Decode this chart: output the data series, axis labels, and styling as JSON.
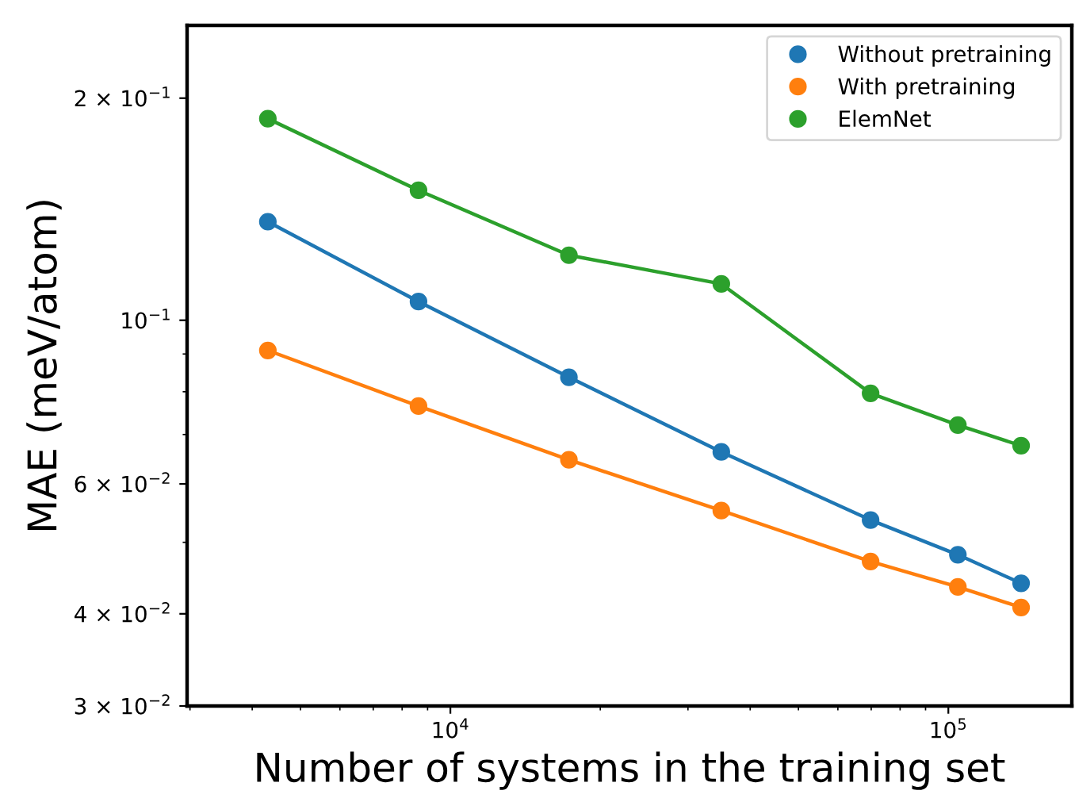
{
  "chart_data": {
    "type": "line",
    "xlabel": "Number of systems in the training set",
    "ylabel": "MAE (meV/atom)",
    "log": "xy",
    "grid": false,
    "legend": "top right",
    "marker": "circle",
    "line_style": "solid",
    "x": [
      4300,
      8630,
      17300,
      35000,
      69800,
      104500,
      140000
    ],
    "xlim": [
      2960,
      177000
    ],
    "xticks": [
      {
        "value": 3000,
        "label": null
      },
      {
        "value": 4000,
        "label": null
      },
      {
        "value": 5000,
        "label": null
      },
      {
        "value": 6000,
        "label": null
      },
      {
        "value": 7000,
        "label": null
      },
      {
        "value": 8000,
        "label": null
      },
      {
        "value": 9000,
        "label": null
      },
      {
        "value": 10000,
        "label": "10$^{4}$"
      },
      {
        "value": 20000,
        "label": null
      },
      {
        "value": 30000,
        "label": null
      },
      {
        "value": 40000,
        "label": null
      },
      {
        "value": 50000,
        "label": null
      },
      {
        "value": 60000,
        "label": null
      },
      {
        "value": 70000,
        "label": null
      },
      {
        "value": 80000,
        "label": null
      },
      {
        "value": 90000,
        "label": null
      },
      {
        "value": 100000,
        "label": "10$^{5}$"
      }
    ],
    "ylim": [
      0.03,
      0.251
    ],
    "yticks": [
      {
        "value": 0.03,
        "label": "3 × 10$^{−2}$"
      },
      {
        "value": 0.04,
        "label": "4 × 10$^{−2}$"
      },
      {
        "value": 0.05,
        "label": null
      },
      {
        "value": 0.06,
        "label": "6 × 10$^{−2}$"
      },
      {
        "value": 0.07,
        "label": null
      },
      {
        "value": 0.08,
        "label": null
      },
      {
        "value": 0.09,
        "label": null
      },
      {
        "value": 0.1,
        "label": "10$^{−1}$"
      },
      {
        "value": 0.2,
        "label": "2 × 10$^{−1}$"
      }
    ],
    "series": [
      {
        "name": "Without pretraining",
        "color": "#1f77b4",
        "values": [
          0.136,
          0.106,
          0.0837,
          0.0663,
          0.0536,
          0.0481,
          0.044
        ]
      },
      {
        "name": "With pretraining",
        "color": "#ff7f0e",
        "values": [
          0.091,
          0.0765,
          0.0647,
          0.0552,
          0.0471,
          0.0435,
          0.0408
        ]
      },
      {
        "name": "ElemNet",
        "color": "#2ca02c",
        "values": [
          0.1876,
          0.15,
          0.1225,
          0.112,
          0.0796,
          0.0721,
          0.0676
        ]
      }
    ]
  }
}
